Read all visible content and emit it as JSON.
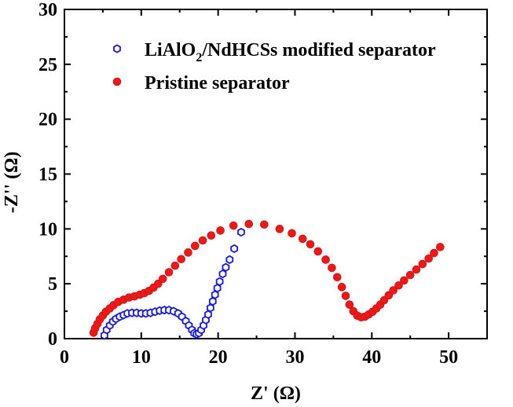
{
  "chart_data": {
    "type": "scatter",
    "title": "",
    "xlabel": "Z' (Ω)",
    "ylabel": "-Z'' (Ω)",
    "xlim": [
      0,
      55
    ],
    "ylim": [
      0,
      30
    ],
    "xticks": [
      "0",
      "10",
      "20",
      "30",
      "40",
      "50"
    ],
    "yticks": [
      "0",
      "5",
      "10",
      "15",
      "20",
      "25",
      "30"
    ],
    "grid": false,
    "legend_position": "top-right",
    "series": [
      {
        "name": "LiAlO2/NdHCSs modified separator",
        "legend_label": {
          "main": "LiAlO",
          "sub": "2",
          "rest": "/NdHCSs modified separator"
        },
        "marker": "hexagon-open",
        "color": "#1a1ad6",
        "points": [
          [
            5.2,
            0.3
          ],
          [
            5.5,
            0.8
          ],
          [
            5.9,
            1.2
          ],
          [
            6.3,
            1.55
          ],
          [
            6.7,
            1.8
          ],
          [
            7.2,
            2.0
          ],
          [
            7.7,
            2.15
          ],
          [
            8.2,
            2.3
          ],
          [
            8.8,
            2.35
          ],
          [
            9.4,
            2.35
          ],
          [
            10.0,
            2.3
          ],
          [
            10.6,
            2.3
          ],
          [
            11.2,
            2.35
          ],
          [
            11.8,
            2.45
          ],
          [
            12.4,
            2.55
          ],
          [
            13.0,
            2.6
          ],
          [
            13.6,
            2.6
          ],
          [
            14.2,
            2.5
          ],
          [
            14.8,
            2.3
          ],
          [
            15.3,
            2.0
          ],
          [
            15.8,
            1.6
          ],
          [
            16.2,
            1.2
          ],
          [
            16.6,
            0.8
          ],
          [
            16.9,
            0.5
          ],
          [
            17.2,
            0.4
          ],
          [
            17.5,
            0.5
          ],
          [
            17.8,
            0.8
          ],
          [
            18.1,
            1.2
          ],
          [
            18.4,
            1.7
          ],
          [
            18.7,
            2.2
          ],
          [
            19.0,
            2.8
          ],
          [
            19.3,
            3.4
          ],
          [
            19.6,
            4.0
          ],
          [
            19.9,
            4.6
          ],
          [
            20.2,
            5.2
          ],
          [
            20.6,
            5.9
          ],
          [
            21.0,
            6.5
          ],
          [
            21.5,
            7.2
          ],
          [
            22.1,
            8.2
          ],
          [
            23.0,
            9.7
          ]
        ]
      },
      {
        "name": "Pristine separator",
        "marker": "circle-filled",
        "color": "#e81a1a",
        "points": [
          [
            3.8,
            0.55
          ],
          [
            4.0,
            0.95
          ],
          [
            4.3,
            1.35
          ],
          [
            4.6,
            1.75
          ],
          [
            5.0,
            2.1
          ],
          [
            5.4,
            2.45
          ],
          [
            5.9,
            2.75
          ],
          [
            6.4,
            3.05
          ],
          [
            7.0,
            3.35
          ],
          [
            7.7,
            3.55
          ],
          [
            8.4,
            3.75
          ],
          [
            9.1,
            3.85
          ],
          [
            9.8,
            4.0
          ],
          [
            10.4,
            4.15
          ],
          [
            11.0,
            4.35
          ],
          [
            11.6,
            4.65
          ],
          [
            12.2,
            5.0
          ],
          [
            12.8,
            5.45
          ],
          [
            13.6,
            6.05
          ],
          [
            14.4,
            6.65
          ],
          [
            15.2,
            7.25
          ],
          [
            16.1,
            7.85
          ],
          [
            17.0,
            8.45
          ],
          [
            18.0,
            8.95
          ],
          [
            19.1,
            9.4
          ],
          [
            20.3,
            9.85
          ],
          [
            22.0,
            10.3
          ],
          [
            24.0,
            10.45
          ],
          [
            26.0,
            10.4
          ],
          [
            28.0,
            10.0
          ],
          [
            29.6,
            9.6
          ],
          [
            31.0,
            9.1
          ],
          [
            32.0,
            8.6
          ],
          [
            33.0,
            7.95
          ],
          [
            34.0,
            7.2
          ],
          [
            34.8,
            6.45
          ],
          [
            35.5,
            5.6
          ],
          [
            36.1,
            4.7
          ],
          [
            36.6,
            3.9
          ],
          [
            37.1,
            3.1
          ],
          [
            37.6,
            2.5
          ],
          [
            38.1,
            2.1
          ],
          [
            38.6,
            1.95
          ],
          [
            39.1,
            2.0
          ],
          [
            39.6,
            2.2
          ],
          [
            40.1,
            2.45
          ],
          [
            40.6,
            2.75
          ],
          [
            41.1,
            3.1
          ],
          [
            41.6,
            3.5
          ],
          [
            42.2,
            3.95
          ],
          [
            42.8,
            4.4
          ],
          [
            43.5,
            4.85
          ],
          [
            44.2,
            5.3
          ],
          [
            45.0,
            5.8
          ],
          [
            45.8,
            6.3
          ],
          [
            46.6,
            6.8
          ],
          [
            47.4,
            7.3
          ],
          [
            48.1,
            7.8
          ],
          [
            48.9,
            8.35
          ]
        ]
      }
    ]
  }
}
